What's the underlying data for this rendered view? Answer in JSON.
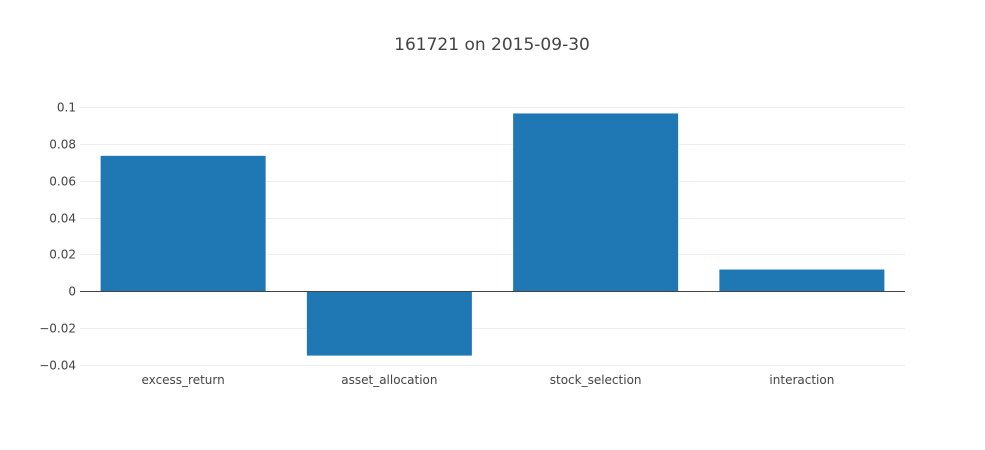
{
  "chart_data": {
    "type": "bar",
    "title": "161721 on 2015-09-30",
    "categories": [
      "excess_return",
      "asset_allocation",
      "stock_selection",
      "interaction"
    ],
    "values": [
      0.0735,
      -0.0349,
      0.0965,
      0.0118
    ],
    "ylim": [
      -0.04,
      0.1
    ],
    "yticks": [
      {
        "value": 0.1,
        "label": "0.1"
      },
      {
        "value": 0.08,
        "label": "0.08"
      },
      {
        "value": 0.06,
        "label": "0.06"
      },
      {
        "value": 0.04,
        "label": "0.04"
      },
      {
        "value": 0.02,
        "label": "0.02"
      },
      {
        "value": 0,
        "label": "0"
      },
      {
        "value": -0.02,
        "label": "−0.02"
      },
      {
        "value": -0.04,
        "label": "−0.04"
      }
    ],
    "grid": true,
    "bar_color": "#1f77b4"
  }
}
